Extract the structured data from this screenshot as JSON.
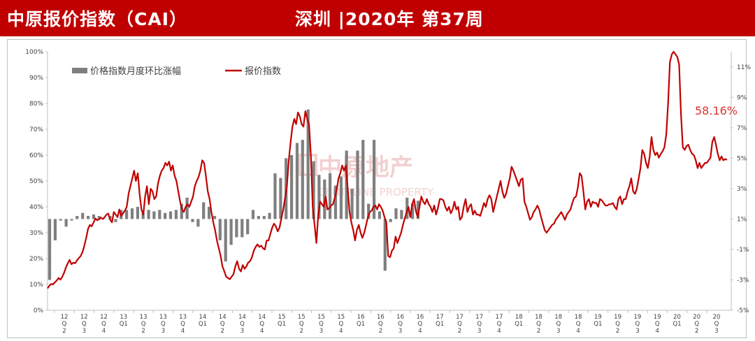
{
  "header": {
    "title": "中原报价指数（CAI）",
    "period": "深圳 |2020年  第37周"
  },
  "watermark": {
    "cn": "中原地产",
    "en": "CENTALINE PROPERTY"
  },
  "annotation": {
    "value_label": "58.16%"
  },
  "colors": {
    "header_bg": "#c00000",
    "bar": "#7f7f7f",
    "line": "#c00000",
    "axis": "#bfbfbf",
    "text": "#404040"
  },
  "chart_data": {
    "type": "bar+line",
    "legend": [
      {
        "name": "价格指数月度环比涨幅",
        "kind": "bar",
        "color": "#7f7f7f"
      },
      {
        "name": "报价指数",
        "kind": "line",
        "color": "#c00000"
      }
    ],
    "y_left": {
      "min": 0,
      "max": 100,
      "ticks": [
        "0%",
        "10%",
        "20%",
        "30%",
        "40%",
        "50%",
        "60%",
        "70%",
        "80%",
        "90%",
        "100%"
      ]
    },
    "y_right": {
      "min": -5,
      "max": 12,
      "ticks": [
        "-5%",
        "-3%",
        "-1%",
        "1%",
        "3%",
        "5%",
        "7%",
        "9%",
        "11%"
      ]
    },
    "x_labels": [
      [
        "12",
        "Q",
        "2"
      ],
      [
        "12",
        "Q",
        "3"
      ],
      [
        "12",
        "Q",
        "4"
      ],
      [
        "13",
        "Q1"
      ],
      [
        "13",
        "Q",
        "2"
      ],
      [
        "13",
        "Q",
        "3"
      ],
      [
        "13",
        "Q",
        "4"
      ],
      [
        "14",
        "Q1"
      ],
      [
        "14",
        "Q",
        "2"
      ],
      [
        "14",
        "Q",
        "3"
      ],
      [
        "14",
        "Q",
        "4"
      ],
      [
        "15",
        "Q1"
      ],
      [
        "15",
        "Q",
        "2"
      ],
      [
        "15",
        "Q",
        "3"
      ],
      [
        "15",
        "Q",
        "4"
      ],
      [
        "16",
        "Q1"
      ],
      [
        "16",
        "Q",
        "2"
      ],
      [
        "16",
        "Q",
        "3"
      ],
      [
        "16",
        "Q",
        "4"
      ],
      [
        "17",
        "Q1"
      ],
      [
        "17",
        "Q",
        "2"
      ],
      [
        "17",
        "Q",
        "3"
      ],
      [
        "17",
        "Q",
        "4"
      ],
      [
        "18",
        "Q1"
      ],
      [
        "18",
        "Q",
        "2"
      ],
      [
        "18",
        "Q",
        "3"
      ],
      [
        "18",
        "Q",
        "4"
      ],
      [
        "19",
        "Q1"
      ],
      [
        "19",
        "Q",
        "2"
      ],
      [
        "19",
        "Q",
        "3"
      ],
      [
        "19",
        "Q",
        "4"
      ],
      [
        "20",
        "Q1"
      ],
      [
        "20",
        "Q",
        "2"
      ],
      [
        "20",
        "Q",
        "3"
      ]
    ],
    "bar_values": [
      -3.0,
      -0.4,
      0.9,
      0.5,
      0.9,
      1.2,
      1.4,
      1.2,
      1.3,
      1.2,
      1.0,
      1.2,
      0.8,
      1.6,
      1.6,
      1.7,
      1.8,
      1.4,
      1.6,
      1.5,
      1.6,
      1.4,
      1.5,
      1.6,
      2.0,
      2.4,
      0.8,
      0.5,
      2.1,
      1.8,
      1.2,
      -0.4,
      -1.8,
      -0.7,
      -0.2,
      -0.2,
      0.0,
      1.6,
      1.2,
      1.2,
      1.4,
      4.0,
      3.7,
      5.0,
      5.2,
      6.0,
      6.2,
      8.2,
      4.8,
      3.9,
      3.6,
      4.0,
      3.2,
      3.8,
      5.5,
      3.0,
      5.5,
      6.2,
      2.0,
      6.2,
      1.5,
      -2.4,
      0.8,
      1.7,
      1.6,
      2.4,
      2.0,
      2.2
    ],
    "line_values": [
      8.5,
      9.5,
      10.2,
      10.0,
      10.8,
      11.5,
      12.5,
      11.8,
      13.0,
      14.5,
      16.5,
      18.2,
      19.5,
      17.8,
      18.4,
      18.2,
      19.3,
      20.2,
      21.0,
      22.5,
      25.0,
      28.0,
      31.5,
      33.0,
      32.5,
      34.0,
      35.5,
      34.8,
      35.2,
      35.8,
      35.3,
      36.0,
      37.0,
      37.4,
      35.0,
      34.0,
      38.0,
      37.0,
      36.0,
      39.0,
      36.5,
      37.5,
      38.5,
      40.0,
      45.0,
      48.0,
      51.0,
      54.0,
      50.0,
      53.0,
      45.0,
      39.0,
      37.0,
      44.0,
      48.0,
      41.0,
      47.0,
      46.0,
      43.0,
      44.0,
      49.0,
      52.0,
      54.0,
      55.0,
      57.0,
      56.0,
      57.5,
      54.0,
      56.0,
      52.0,
      50.0,
      46.0,
      42.0,
      39.0,
      38.0,
      40.0,
      41.0,
      40.0,
      42.0,
      44.0,
      48.0,
      50.0,
      51.5,
      54.0,
      58.0,
      57.0,
      52.0,
      46.0,
      43.0,
      38.0,
      34.0,
      31.0,
      27.0,
      24.0,
      21.0,
      17.0,
      15.0,
      13.0,
      12.5,
      12.0,
      13.0,
      14.0,
      17.0,
      19.0,
      16.0,
      15.0,
      17.5,
      16.0,
      17.0,
      18.5,
      19.0,
      20.5,
      23.0,
      24.5,
      25.5,
      24.5,
      25.0,
      24.0,
      23.5,
      27.0,
      27.0,
      29.5,
      32.0,
      33.5,
      32.5,
      30.5,
      32.0,
      35.5,
      39.0,
      43.5,
      48.0,
      58.0,
      65.0,
      71.0,
      74.0,
      72.0,
      76.5,
      75.0,
      72.0,
      71.0,
      77.0,
      74.0,
      72.0,
      60.0,
      40.0,
      33.0,
      26.0,
      37.0,
      42.0,
      41.0,
      40.0,
      44.0,
      39.0,
      39.5,
      40.5,
      41.0,
      43.5,
      46.5,
      51.0,
      53.0,
      56.0,
      54.0,
      56.0,
      47.0,
      38.0,
      34.0,
      31.0,
      27.0,
      31.0,
      33.0,
      30.0,
      28.0,
      30.0,
      33.0,
      36.0,
      38.0,
      38.5,
      40.0,
      40.5,
      39.0,
      41.0,
      40.0,
      38.5,
      36.0,
      34.0,
      21.0,
      20.5,
      23.0,
      24.0,
      28.5,
      26.0,
      28.0,
      30.0,
      33.0,
      35.5,
      38.0,
      40.0,
      36.0,
      41.0,
      43.0,
      38.5,
      36.0,
      40.0,
      44.0,
      42.0,
      41.0,
      43.0,
      41.0,
      40.0,
      38.0,
      40.5,
      37.0,
      39.5,
      43.0,
      43.0,
      42.5,
      40.0,
      38.5,
      40.0,
      37.5,
      39.0,
      42.0,
      39.0,
      40.0,
      35.0,
      36.0,
      40.0,
      43.0,
      38.0,
      40.0,
      41.0,
      37.0,
      38.5,
      37.0,
      37.0,
      36.5,
      39.0,
      41.5,
      40.0,
      43.0,
      44.5,
      43.0,
      38.0,
      41.0,
      44.0,
      47.0,
      50.0,
      46.0,
      43.5,
      45.0,
      48.0,
      51.0,
      55.5,
      54.0,
      52.0,
      50.0,
      48.0,
      50.5,
      51.0,
      42.0,
      40.0,
      37.5,
      35.0,
      36.0,
      38.0,
      39.0,
      40.5,
      39.0,
      36.0,
      33.5,
      31.0,
      30.0,
      31.0,
      32.0,
      33.0,
      33.5,
      35.0,
      36.0,
      37.0,
      38.0,
      36.5,
      35.0,
      37.0,
      38.0,
      39.0,
      41.5,
      43.5,
      44.0,
      47.5,
      53.0,
      52.0,
      46.0,
      39.0,
      42.0,
      43.0,
      40.0,
      42.0,
      41.5,
      41.5,
      40.0,
      43.0,
      42.5,
      41.5,
      40.5,
      40.5,
      41.0,
      41.0,
      41.5,
      40.0,
      39.0,
      43.0,
      44.0,
      41.0,
      43.0,
      43.0,
      46.0,
      48.0,
      51.0,
      46.0,
      45.0,
      47.0,
      51.0,
      55.0,
      62.0,
      60.5,
      57.0,
      55.0,
      59.5,
      67.0,
      62.0,
      60.0,
      61.0,
      59.0,
      60.5,
      61.5,
      63.0,
      68.0,
      80.0,
      96.0,
      99.0,
      100.0,
      99.0,
      98.0,
      95.0,
      76.0,
      63.0,
      62.0,
      63.5,
      64.0,
      62.0,
      60.5,
      60.0,
      58.0,
      55.0,
      57.0,
      55.0,
      56.0,
      57.0,
      57.0,
      58.0,
      59.0,
      65.0,
      67.0,
      64.0,
      60.5,
      58.0,
      59.5,
      58.0,
      58.5,
      58.16
    ]
  }
}
